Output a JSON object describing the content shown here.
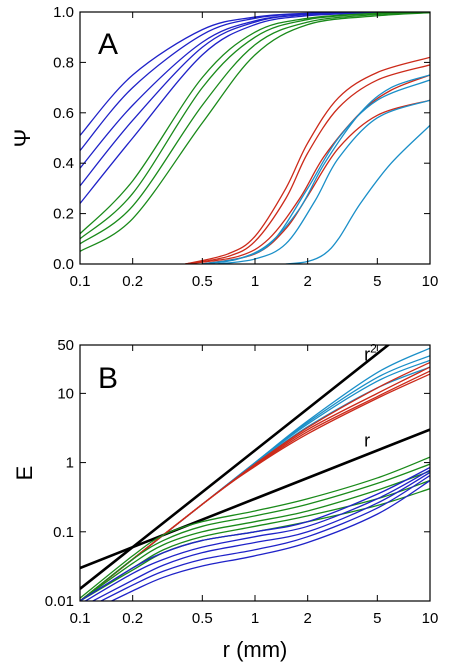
{
  "chart_data": [
    {
      "panel": "A",
      "type": "line",
      "xscale": "log",
      "xlim": [
        0.1,
        10
      ],
      "ylim": [
        0,
        1
      ],
      "xticks": [
        "0.1",
        "0.2",
        "0.5",
        "1",
        "2",
        "5",
        "10"
      ],
      "xtick_values": [
        0.1,
        0.2,
        0.5,
        1,
        2,
        5,
        10
      ],
      "yticks": [
        "0.0",
        "0.2",
        "0.4",
        "0.6",
        "0.8",
        "1.0"
      ],
      "ytick_values": [
        0,
        0.2,
        0.4,
        0.6,
        0.8,
        1.0
      ],
      "ylabel": "Ψ",
      "xlabel": "",
      "colors": {
        "blue": "#1f22c8",
        "green": "#1a8a1a",
        "red": "#cc2a1a",
        "cyan": "#1a8fc8"
      },
      "series": [
        {
          "color": "blue",
          "x": [
            0.1,
            0.2,
            0.5,
            1,
            2,
            5,
            10
          ],
          "y": [
            0.51,
            0.75,
            0.93,
            0.98,
            0.995,
            1.0,
            1.0
          ]
        },
        {
          "color": "blue",
          "x": [
            0.1,
            0.2,
            0.5,
            1,
            2,
            5,
            10
          ],
          "y": [
            0.45,
            0.7,
            0.91,
            0.975,
            0.993,
            1.0,
            1.0
          ]
        },
        {
          "color": "blue",
          "x": [
            0.1,
            0.2,
            0.5,
            1,
            2,
            5,
            10
          ],
          "y": [
            0.38,
            0.63,
            0.88,
            0.965,
            0.99,
            0.998,
            1.0
          ]
        },
        {
          "color": "blue",
          "x": [
            0.1,
            0.2,
            0.5,
            1,
            2,
            5,
            10
          ],
          "y": [
            0.31,
            0.57,
            0.86,
            0.96,
            0.99,
            0.998,
            1.0
          ]
        },
        {
          "color": "blue",
          "x": [
            0.1,
            0.2,
            0.5,
            1,
            2,
            5,
            10
          ],
          "y": [
            0.24,
            0.5,
            0.83,
            0.95,
            0.985,
            0.997,
            1.0
          ]
        },
        {
          "color": "green",
          "x": [
            0.1,
            0.2,
            0.5,
            1,
            2,
            5,
            10
          ],
          "y": [
            0.12,
            0.33,
            0.74,
            0.92,
            0.975,
            0.995,
            1.0
          ]
        },
        {
          "color": "green",
          "x": [
            0.1,
            0.2,
            0.5,
            1,
            2,
            5,
            10
          ],
          "y": [
            0.1,
            0.28,
            0.7,
            0.9,
            0.97,
            0.994,
            1.0
          ]
        },
        {
          "color": "green",
          "x": [
            0.1,
            0.2,
            0.5,
            1,
            2,
            5,
            10
          ],
          "y": [
            0.08,
            0.23,
            0.63,
            0.87,
            0.96,
            0.99,
            0.998
          ]
        },
        {
          "color": "green",
          "x": [
            0.1,
            0.2,
            0.5,
            1,
            2,
            5,
            10
          ],
          "y": [
            0.05,
            0.18,
            0.56,
            0.83,
            0.95,
            0.985,
            0.997
          ]
        },
        {
          "color": "red",
          "x": [
            0.4,
            0.7,
            1,
            1.5,
            2,
            3,
            5,
            10
          ],
          "y": [
            0.0,
            0.04,
            0.11,
            0.3,
            0.48,
            0.66,
            0.76,
            0.82
          ]
        },
        {
          "color": "red",
          "x": [
            0.4,
            0.7,
            1,
            1.5,
            2,
            3,
            5,
            10
          ],
          "y": [
            0.0,
            0.03,
            0.09,
            0.26,
            0.44,
            0.62,
            0.73,
            0.79
          ]
        },
        {
          "color": "red",
          "x": [
            0.4,
            0.8,
            1.2,
            1.8,
            2.5,
            4,
            6,
            10
          ],
          "y": [
            0.0,
            0.03,
            0.1,
            0.26,
            0.43,
            0.6,
            0.69,
            0.75
          ]
        },
        {
          "color": "red",
          "x": [
            0.5,
            1,
            1.5,
            2,
            3,
            5,
            10
          ],
          "y": [
            0.0,
            0.04,
            0.14,
            0.27,
            0.46,
            0.59,
            0.65
          ]
        },
        {
          "color": "cyan",
          "x": [
            0.5,
            0.8,
            1.2,
            1.8,
            2.5,
            4,
            6,
            10
          ],
          "y": [
            0.0,
            0.02,
            0.08,
            0.22,
            0.4,
            0.6,
            0.7,
            0.75
          ]
        },
        {
          "color": "cyan",
          "x": [
            0.5,
            0.9,
            1.3,
            2,
            3,
            5,
            10
          ],
          "y": [
            0.0,
            0.03,
            0.1,
            0.3,
            0.5,
            0.65,
            0.73
          ]
        },
        {
          "color": "cyan",
          "x": [
            0.6,
            1,
            1.5,
            2.2,
            3,
            5,
            10
          ],
          "y": [
            0.0,
            0.02,
            0.08,
            0.25,
            0.42,
            0.58,
            0.65
          ]
        },
        {
          "color": "cyan",
          "x": [
            1.5,
            2,
            2.5,
            3,
            4,
            6,
            10
          ],
          "y": [
            0.0,
            0.01,
            0.04,
            0.1,
            0.24,
            0.4,
            0.55
          ]
        }
      ]
    },
    {
      "panel": "B",
      "type": "line",
      "xscale": "log",
      "yscale": "log",
      "xlim": [
        0.1,
        10
      ],
      "ylim": [
        0.01,
        50
      ],
      "xticks": [
        "0.1",
        "0.2",
        "0.5",
        "1",
        "2",
        "5",
        "10"
      ],
      "xtick_values": [
        0.1,
        0.2,
        0.5,
        1,
        2,
        5,
        10
      ],
      "yticks": [
        "0.01",
        "0.1",
        "1",
        "10",
        "50"
      ],
      "ytick_values": [
        0.01,
        0.1,
        1,
        10,
        50
      ],
      "ylabel": "E",
      "xlabel": "r (mm)",
      "annotations": [
        {
          "text": "r",
          "superscript": "2",
          "x": 4.2,
          "y": 30
        },
        {
          "text": "r",
          "superscript": "",
          "x": 4.2,
          "y": 1.7
        }
      ],
      "colors": {
        "blue": "#1f22c8",
        "green": "#1a8a1a",
        "red": "#cc2a1a",
        "cyan": "#1a8fc8",
        "black": "#000000"
      },
      "series": [
        {
          "color": "black",
          "x": [
            0.1,
            10
          ],
          "y": [
            0.015,
            150
          ]
        },
        {
          "color": "black",
          "x": [
            0.1,
            10
          ],
          "y": [
            0.03,
            3
          ]
        },
        {
          "color": "cyan",
          "x": [
            0.1,
            0.5,
            1,
            2,
            5,
            10
          ],
          "y": [
            0.01,
            0.25,
            1,
            4,
            20,
            45
          ]
        },
        {
          "color": "cyan",
          "x": [
            0.1,
            0.5,
            1,
            2,
            5,
            10
          ],
          "y": [
            0.01,
            0.25,
            1,
            3.8,
            17,
            35
          ]
        },
        {
          "color": "cyan",
          "x": [
            0.1,
            0.5,
            1,
            2,
            5,
            10
          ],
          "y": [
            0.01,
            0.25,
            0.98,
            3.6,
            15,
            30
          ]
        },
        {
          "color": "cyan",
          "x": [
            0.1,
            0.5,
            1,
            2,
            5,
            10
          ],
          "y": [
            0.01,
            0.25,
            0.95,
            3.3,
            12,
            24
          ]
        },
        {
          "color": "red",
          "x": [
            0.1,
            0.5,
            1,
            2,
            5,
            10
          ],
          "y": [
            0.01,
            0.25,
            0.95,
            3.2,
            12,
            28
          ]
        },
        {
          "color": "red",
          "x": [
            0.1,
            0.5,
            1,
            2,
            5,
            10
          ],
          "y": [
            0.01,
            0.25,
            0.92,
            3.0,
            10,
            24
          ]
        },
        {
          "color": "red",
          "x": [
            0.1,
            0.5,
            1,
            2,
            5,
            10
          ],
          "y": [
            0.01,
            0.25,
            0.9,
            2.8,
            9,
            21
          ]
        },
        {
          "color": "red",
          "x": [
            0.1,
            0.5,
            1,
            2,
            5,
            10
          ],
          "y": [
            0.01,
            0.25,
            0.88,
            2.6,
            8.5,
            19
          ]
        },
        {
          "color": "green",
          "x": [
            0.1,
            0.2,
            0.3,
            0.5,
            1,
            2,
            5,
            10
          ],
          "y": [
            0.011,
            0.045,
            0.09,
            0.14,
            0.2,
            0.3,
            0.6,
            1.2
          ]
        },
        {
          "color": "green",
          "x": [
            0.1,
            0.2,
            0.3,
            0.5,
            1,
            2,
            5,
            10
          ],
          "y": [
            0.01,
            0.04,
            0.075,
            0.12,
            0.17,
            0.25,
            0.5,
            0.95
          ]
        },
        {
          "color": "green",
          "x": [
            0.1,
            0.2,
            0.3,
            0.5,
            1,
            2,
            5,
            10
          ],
          "y": [
            0.01,
            0.035,
            0.065,
            0.1,
            0.14,
            0.2,
            0.4,
            0.75
          ]
        },
        {
          "color": "green",
          "x": [
            0.1,
            0.2,
            0.3,
            0.5,
            1,
            2,
            5,
            10
          ],
          "y": [
            0.01,
            0.03,
            0.055,
            0.085,
            0.12,
            0.17,
            0.3,
            0.55
          ]
        },
        {
          "color": "green",
          "x": [
            0.1,
            0.2,
            0.3,
            0.5,
            1,
            2,
            5,
            10
          ],
          "y": [
            0.01,
            0.028,
            0.05,
            0.075,
            0.1,
            0.14,
            0.24,
            0.42
          ]
        },
        {
          "color": "blue",
          "x": [
            0.1,
            0.2,
            0.3,
            0.5,
            1,
            2,
            5,
            10
          ],
          "y": [
            0.01,
            0.03,
            0.05,
            0.075,
            0.1,
            0.14,
            0.35,
            0.85
          ]
        },
        {
          "color": "blue",
          "x": [
            0.1,
            0.2,
            0.3,
            0.5,
            1,
            2,
            5,
            10
          ],
          "y": [
            0.009,
            0.025,
            0.04,
            0.06,
            0.085,
            0.12,
            0.3,
            0.78
          ]
        },
        {
          "color": "blue",
          "x": [
            0.1,
            0.2,
            0.3,
            0.5,
            1,
            2,
            5,
            10
          ],
          "y": [
            0.008,
            0.02,
            0.033,
            0.05,
            0.07,
            0.1,
            0.26,
            0.72
          ]
        },
        {
          "color": "blue",
          "x": [
            0.1,
            0.2,
            0.3,
            0.5,
            1,
            2,
            5,
            10
          ],
          "y": [
            0.007,
            0.017,
            0.027,
            0.04,
            0.055,
            0.085,
            0.22,
            0.65
          ]
        },
        {
          "color": "blue",
          "x": [
            0.1,
            0.2,
            0.3,
            0.5,
            1,
            2,
            5,
            10
          ],
          "y": [
            0.006,
            0.014,
            0.022,
            0.032,
            0.045,
            0.07,
            0.18,
            0.55
          ]
        }
      ]
    }
  ]
}
